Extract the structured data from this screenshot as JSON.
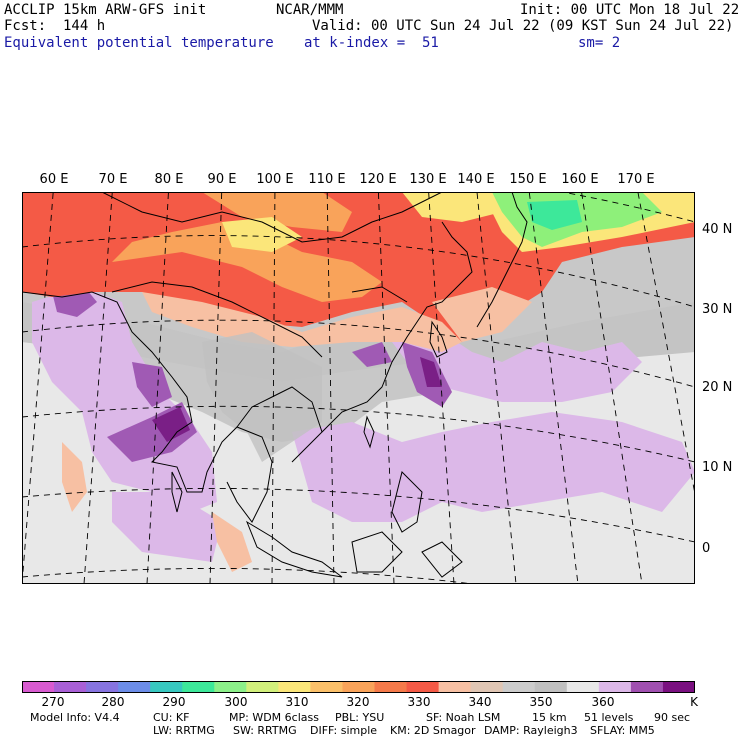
{
  "header": {
    "model": "ACCLIP 15km ARW-GFS init",
    "org": "NCAR/MMM",
    "init": "Init: 00 UTC Mon 18 Jul 22",
    "fcst": "Fcst:  144 h",
    "valid": "Valid: 00 UTC Sun 24 Jul 22 (09 KST Sun 24 Jul 22)",
    "field": "Equivalent potential temperature",
    "level": "at k-index =  51",
    "smooth": "sm= 2"
  },
  "map": {
    "lon_labels": [
      "60 E",
      "70 E",
      "80 E",
      "90 E",
      "100 E",
      "110 E",
      "120 E",
      "130 E",
      "140 E",
      "150 E",
      "160 E",
      "170 E"
    ],
    "lat_labels": [
      "40 N",
      "30 N",
      "20 N",
      "10 N",
      "0"
    ],
    "colors": {
      "land_outline": "#000000",
      "grid": "#000000",
      "bg_gray": "#c8c8c8",
      "light_gray": "#e8e8e8",
      "red": "#f45a46",
      "orange": "#f9a35a",
      "pink": "#f7c0a3",
      "yellow": "#fbe67a",
      "green": "#8ef07a",
      "lilac": "#dcb8e8",
      "purple": "#a05ab4",
      "dark_purple": "#7a1f86"
    }
  },
  "colorbar": {
    "colors": [
      "#d85bd0",
      "#a960d6",
      "#8774e0",
      "#6c8de8",
      "#38c8c0",
      "#3de89a",
      "#8cf08a",
      "#d2f07c",
      "#fbe67a",
      "#fbc06a",
      "#f9a35a",
      "#f57a4a",
      "#f45a46",
      "#f7c0a3",
      "#e0c6b4",
      "#cccccc",
      "#c0c0c0",
      "#e8e8e8",
      "#dcb8e8",
      "#a050b0",
      "#7a1080"
    ],
    "labels": [
      "270",
      "280",
      "290",
      "300",
      "310",
      "320",
      "330",
      "340",
      "350",
      "360",
      "K"
    ]
  },
  "footer": {
    "line1": [
      "Model Info: V4.4",
      "CU: KF",
      "MP: WDM 6class",
      "PBL: YSU",
      "SF: Noah LSM",
      "15 km",
      "51 levels",
      "90 sec"
    ],
    "line2": [
      "LW: RRTMG",
      "SW: RRTMG",
      "DIFF: simple",
      "KM: 2D Smagor",
      "DAMP: Rayleigh3",
      "SFLAY: MM5"
    ]
  }
}
